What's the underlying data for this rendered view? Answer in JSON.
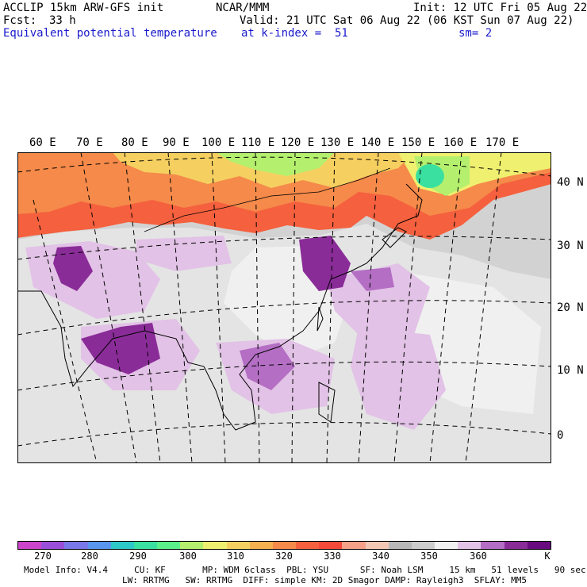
{
  "header": {
    "title_left": "ACCLIP 15km ARW-GFS init",
    "org": "NCAR/MMM",
    "init": "Init: 12 UTC Fri 05 Aug 22",
    "fcst_label": "Fcst:",
    "fcst_value": "33 h",
    "valid": "Valid: 21 UTC Sat 06 Aug 22 (06 KST Sun 07 Aug 22)",
    "field": "Equivalent potential temperature",
    "level": "at k-index =  51",
    "smooth": "sm= 2"
  },
  "map": {
    "lon_labels": [
      "60 E",
      "70 E",
      "80 E",
      "90 E",
      "100 E",
      "110 E",
      "120 E",
      "130 E",
      "140 E",
      "150 E",
      "160 E",
      "170 E"
    ],
    "lat_labels": [
      "40 N",
      "30 N",
      "20 N",
      "10 N",
      "0"
    ]
  },
  "colorbar": {
    "colors": [
      "#cc44cc",
      "#9a4fd8",
      "#7878e8",
      "#5a96ee",
      "#2ec8c8",
      "#3ae0a0",
      "#5af08a",
      "#b4f06e",
      "#f0f070",
      "#f5d060",
      "#f5b050",
      "#f58a4a",
      "#f5603e",
      "#f54a3a",
      "#f5a088",
      "#f2c8b4",
      "#b8b8b8",
      "#cccccc",
      "#f0f0f0",
      "#e2c2e6",
      "#b46ec4",
      "#8a2c98",
      "#6a0a80"
    ],
    "labels": [
      "270",
      "280",
      "290",
      "300",
      "310",
      "320",
      "330",
      "340",
      "350",
      "360",
      "K"
    ]
  },
  "footer": {
    "line1": "Model Info: V4.4     CU: KF       MP: WDM 6class  PBL: YSU      SF: Noah LSM     15 km   51 levels   90 sec",
    "line2": "LW: RRTMG   SW: RRTMG  DIFF: simple KM: 2D Smagor DAMP: Rayleigh3  SFLAY: MM5"
  }
}
